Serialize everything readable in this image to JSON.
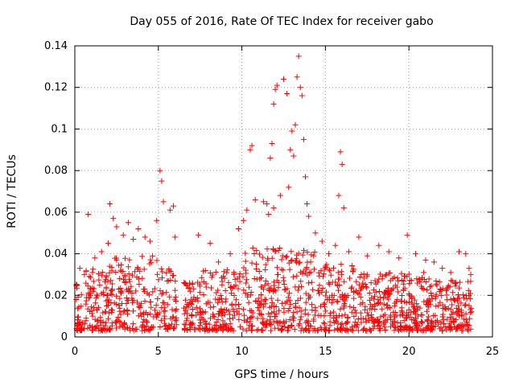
{
  "chart_data": {
    "type": "scatter",
    "title": "Day 055 of 2016, Rate Of TEC Index for receiver gabo",
    "xlabel": "GPS time / hours",
    "ylabel": "ROTI / TECUs",
    "xlim": [
      0,
      25
    ],
    "ylim": [
      0,
      0.14
    ],
    "xticks": [
      0,
      5,
      10,
      15,
      20,
      25
    ],
    "xtick_labels": [
      "0",
      "5",
      "10",
      "15",
      "20",
      "25"
    ],
    "yticks": [
      0,
      0.02,
      0.04,
      0.06,
      0.08,
      0.1,
      0.12,
      0.14
    ],
    "ytick_labels": [
      "0",
      "0.02",
      "0.04",
      "0.06",
      "0.08",
      "0.1",
      "0.12",
      "0.14"
    ],
    "grid": true,
    "marker": "+",
    "color": "#ff0000",
    "series": [
      {
        "name": "ROTI",
        "points": [
          [
            0.3,
            0.033
          ],
          [
            0.8,
            0.059
          ],
          [
            1.2,
            0.038
          ],
          [
            1.6,
            0.041
          ],
          [
            2.0,
            0.045
          ],
          [
            2.1,
            0.064
          ],
          [
            2.3,
            0.057
          ],
          [
            2.5,
            0.053
          ],
          [
            2.9,
            0.049
          ],
          [
            3.2,
            0.055
          ],
          [
            3.5,
            0.047
          ],
          [
            3.8,
            0.052
          ],
          [
            4.2,
            0.048
          ],
          [
            4.5,
            0.046
          ],
          [
            4.9,
            0.056
          ],
          [
            5.1,
            0.08
          ],
          [
            5.2,
            0.075
          ],
          [
            5.3,
            0.065
          ],
          [
            5.7,
            0.061
          ],
          [
            5.9,
            0.063
          ],
          [
            6.0,
            0.048
          ],
          [
            7.4,
            0.049
          ],
          [
            8.1,
            0.045
          ],
          [
            8.6,
            0.036
          ],
          [
            9.3,
            0.04
          ],
          [
            9.8,
            0.052
          ],
          [
            10.1,
            0.056
          ],
          [
            10.3,
            0.061
          ],
          [
            10.5,
            0.09
          ],
          [
            10.6,
            0.092
          ],
          [
            10.8,
            0.066
          ],
          [
            11.3,
            0.065
          ],
          [
            11.6,
            0.059
          ],
          [
            11.9,
            0.062
          ],
          [
            11.5,
            0.064
          ],
          [
            11.7,
            0.086
          ],
          [
            11.8,
            0.093
          ],
          [
            11.9,
            0.112
          ],
          [
            12.0,
            0.119
          ],
          [
            12.1,
            0.121
          ],
          [
            12.3,
            0.068
          ],
          [
            12.5,
            0.124
          ],
          [
            12.7,
            0.117
          ],
          [
            12.8,
            0.072
          ],
          [
            12.9,
            0.09
          ],
          [
            13.0,
            0.099
          ],
          [
            13.1,
            0.087
          ],
          [
            13.2,
            0.102
          ],
          [
            13.3,
            0.125
          ],
          [
            13.4,
            0.135
          ],
          [
            13.5,
            0.12
          ],
          [
            13.6,
            0.116
          ],
          [
            13.7,
            0.095
          ],
          [
            13.8,
            0.077
          ],
          [
            13.9,
            0.064
          ],
          [
            14.0,
            0.058
          ],
          [
            14.4,
            0.05
          ],
          [
            14.8,
            0.046
          ],
          [
            15.2,
            0.04
          ],
          [
            15.6,
            0.044
          ],
          [
            15.8,
            0.068
          ],
          [
            15.9,
            0.089
          ],
          [
            16.0,
            0.083
          ],
          [
            16.1,
            0.062
          ],
          [
            16.4,
            0.041
          ],
          [
            17.0,
            0.048
          ],
          [
            17.5,
            0.039
          ],
          [
            18.2,
            0.044
          ],
          [
            18.8,
            0.041
          ],
          [
            19.4,
            0.038
          ],
          [
            19.9,
            0.049
          ],
          [
            20.4,
            0.04
          ],
          [
            21.0,
            0.037
          ],
          [
            21.5,
            0.036
          ],
          [
            22.0,
            0.033
          ],
          [
            22.5,
            0.031
          ],
          [
            23.0,
            0.041
          ],
          [
            23.4,
            0.04
          ],
          [
            23.6,
            0.033
          ],
          [
            23.7,
            0.03
          ]
        ]
      }
    ]
  }
}
